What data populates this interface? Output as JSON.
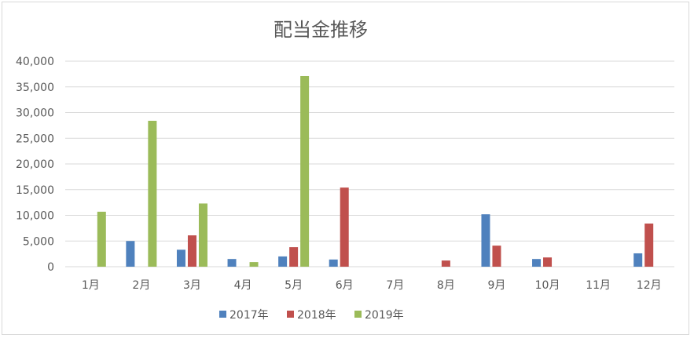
{
  "colors": {
    "series_2017": "#4f81bd",
    "series_2018": "#c0504d",
    "series_2019": "#9bbb59",
    "grid": "#d9d9d9",
    "text": "#595959"
  },
  "chart_data": {
    "type": "bar",
    "title": "配当金推移",
    "xlabel": "",
    "ylabel": "",
    "ylim": [
      0,
      40000
    ],
    "yticks": [
      0,
      5000,
      10000,
      15000,
      20000,
      25000,
      30000,
      35000,
      40000
    ],
    "ytick_labels": [
      "0",
      "5,000",
      "10,000",
      "15,000",
      "20,000",
      "25,000",
      "30,000",
      "35,000",
      "40,000"
    ],
    "grid": true,
    "legend_position": "bottom",
    "categories": [
      "1月",
      "2月",
      "3月",
      "4月",
      "5月",
      "6月",
      "7月",
      "8月",
      "9月",
      "10月",
      "11月",
      "12月"
    ],
    "series": [
      {
        "name": "2017年",
        "color": "#4f81bd",
        "values": [
          0,
          5000,
          3300,
          1500,
          2000,
          1400,
          0,
          0,
          10200,
          1500,
          0,
          2600
        ]
      },
      {
        "name": "2018年",
        "color": "#c0504d",
        "values": [
          0,
          0,
          6100,
          0,
          3800,
          15400,
          0,
          1200,
          4100,
          1800,
          0,
          8400
        ]
      },
      {
        "name": "2019年",
        "color": "#9bbb59",
        "values": [
          10700,
          28400,
          12300,
          900,
          37100,
          0,
          0,
          0,
          0,
          0,
          0,
          0
        ]
      }
    ]
  }
}
